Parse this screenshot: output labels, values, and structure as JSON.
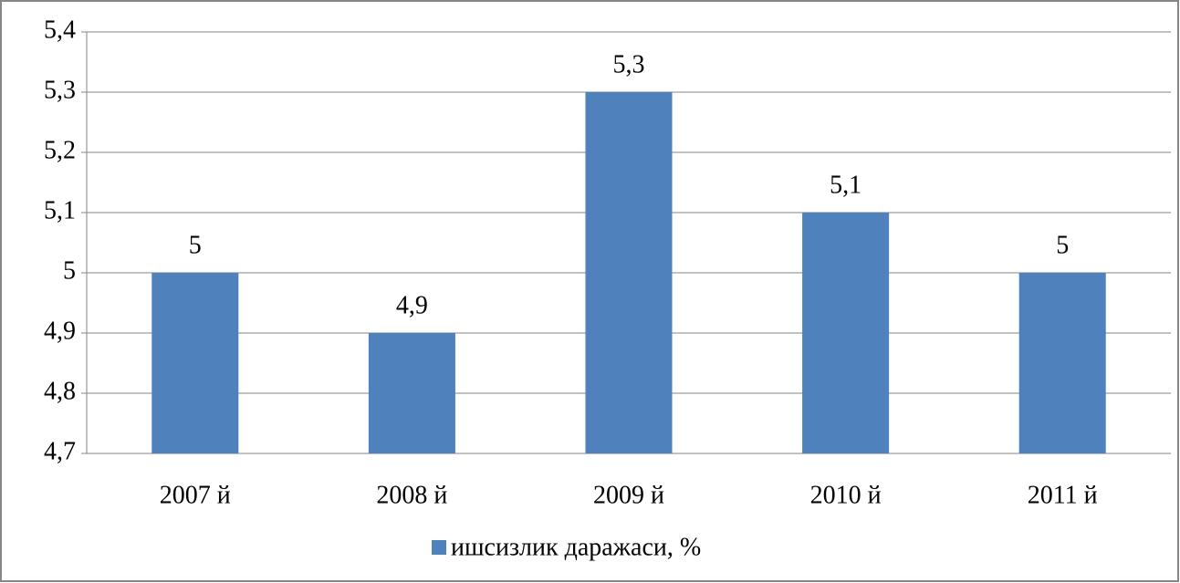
{
  "chart_data": {
    "type": "bar",
    "categories": [
      "2007 й",
      "2008 й",
      "2009 й",
      "2010 й",
      "2011 й"
    ],
    "series": [
      {
        "name": "ишсизлик даражаси, %",
        "color": "#4f81bd",
        "values": [
          5,
          4.9,
          5.3,
          5.1,
          5
        ],
        "value_labels": [
          "5",
          "4,9",
          "5,3",
          "5,1",
          "5"
        ]
      }
    ],
    "ylim": [
      4.7,
      5.4
    ],
    "yticks": [
      {
        "value": 4.7,
        "label": "4,7"
      },
      {
        "value": 4.8,
        "label": "4,8"
      },
      {
        "value": 4.9,
        "label": "4,9"
      },
      5,
      {
        "value": 5.1,
        "label": "5,1"
      },
      {
        "value": 5.2,
        "label": "5,2"
      },
      {
        "value": 5.3,
        "label": "5,3"
      },
      {
        "value": 5.4,
        "label": "5,4"
      }
    ],
    "grid": true,
    "legend": "bottom"
  }
}
